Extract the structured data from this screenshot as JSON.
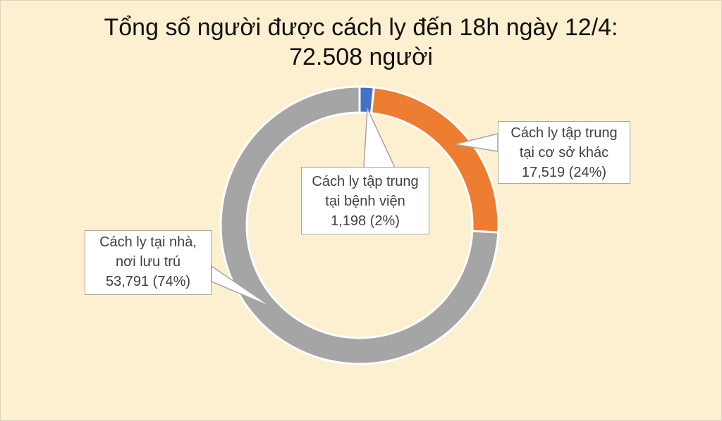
{
  "chart_data": {
    "type": "pie",
    "variant": "donut",
    "title_line1": "Tổng số người được cách ly đến 18h ngày 12/4:",
    "title_line2": "72.508 người",
    "slices": [
      {
        "label_line1": "Cách ly tập trung",
        "label_line2": "tại bệnh viện",
        "value": 1198,
        "value_text": "1,198  (2%)",
        "color": "#4472C4"
      },
      {
        "label_line1": "Cách ly tập trung",
        "label_line2": "tại cơ sở khác",
        "value": 17519,
        "value_text": "17,519 (24%)",
        "color": "#ED7D31"
      },
      {
        "label_line1": "Cách ly tại nhà,",
        "label_line2": "nơi lưu trú",
        "value": 53791,
        "value_text": "53,791 (74%)",
        "color": "#A5A5A5"
      }
    ],
    "start": "top",
    "direction": "clockwise",
    "legend": "none"
  }
}
